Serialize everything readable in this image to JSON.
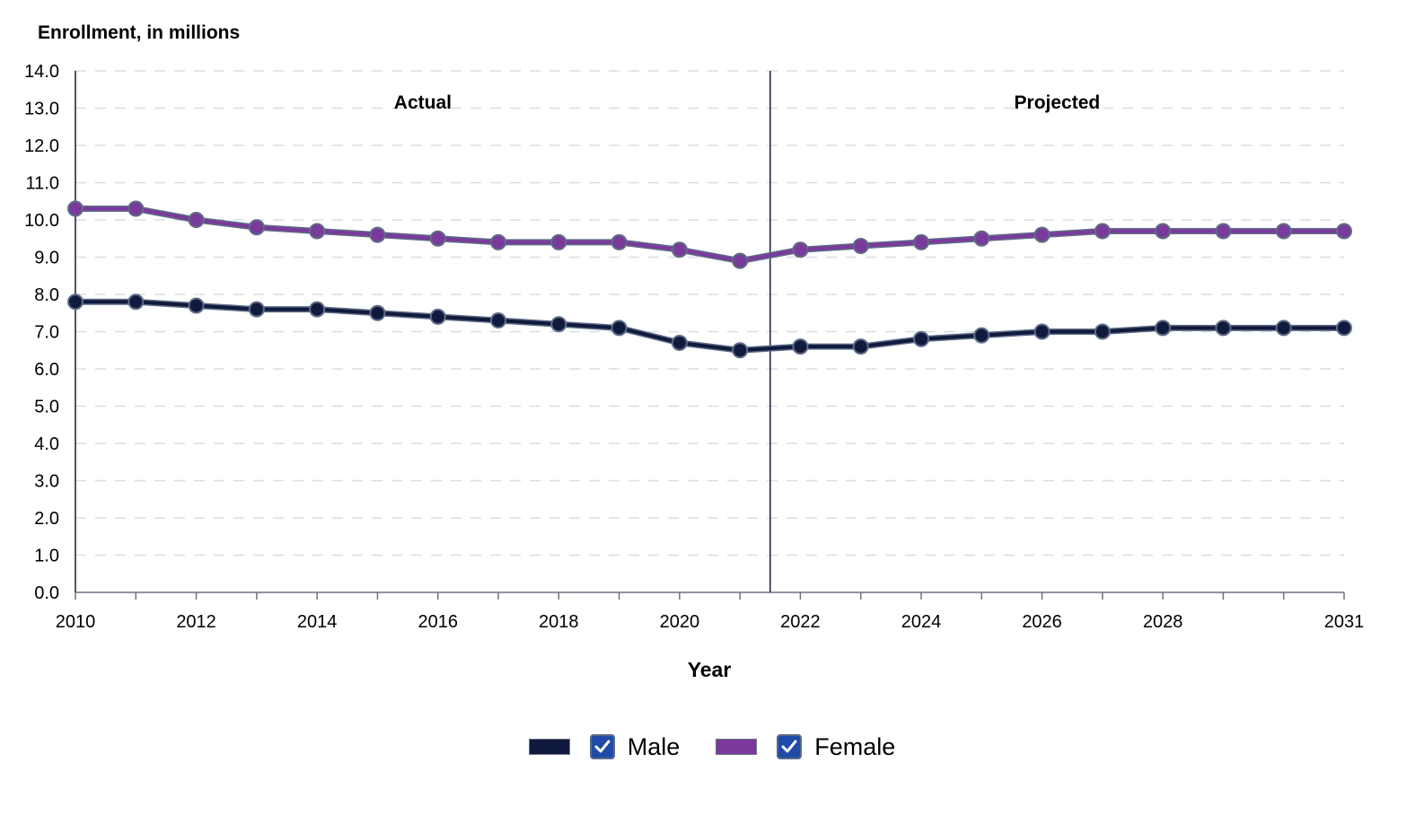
{
  "chart_data": {
    "type": "line",
    "y_title": "Enrollment, in millions",
    "xlabel": "Year",
    "ylim": [
      0,
      14
    ],
    "y_ticks": [
      "0.0",
      "1.0",
      "2.0",
      "3.0",
      "4.0",
      "5.0",
      "6.0",
      "7.0",
      "8.0",
      "9.0",
      "10.0",
      "11.0",
      "12.0",
      "13.0",
      "14.0"
    ],
    "x_ticks": [
      2010,
      2012,
      2014,
      2016,
      2018,
      2020,
      2022,
      2024,
      2026,
      2028,
      2031
    ],
    "x": [
      2010,
      2011,
      2012,
      2013,
      2014,
      2015,
      2016,
      2017,
      2018,
      2019,
      2020,
      2021,
      2022,
      2023,
      2024,
      2025,
      2026,
      2027,
      2028,
      2029,
      2030,
      2031
    ],
    "grid": "horizontal-dashed",
    "divider_after_year": 2021,
    "regions": [
      {
        "label": "Actual"
      },
      {
        "label": "Projected"
      }
    ],
    "legend_position": "bottom-center",
    "series": [
      {
        "name": "Male",
        "color": "#0f1a3e",
        "values": [
          7.8,
          7.8,
          7.7,
          7.6,
          7.6,
          7.5,
          7.4,
          7.3,
          7.2,
          7.1,
          6.7,
          6.5,
          6.6,
          6.6,
          6.8,
          6.9,
          7.0,
          7.0,
          7.1,
          7.1,
          7.1,
          7.1
        ]
      },
      {
        "name": "Female",
        "color": "#7a3a9c",
        "values": [
          10.3,
          10.3,
          10.0,
          9.8,
          9.7,
          9.6,
          9.5,
          9.4,
          9.4,
          9.4,
          9.2,
          8.9,
          9.2,
          9.3,
          9.4,
          9.5,
          9.6,
          9.7,
          9.7,
          9.7,
          9.7,
          9.7
        ]
      }
    ]
  },
  "legend": {
    "items": [
      {
        "label": "Male",
        "color": "#0f1a3e",
        "checked": true
      },
      {
        "label": "Female",
        "color": "#7a3a9c",
        "checked": true
      }
    ],
    "checkbox_color": "#1f4aa8"
  }
}
